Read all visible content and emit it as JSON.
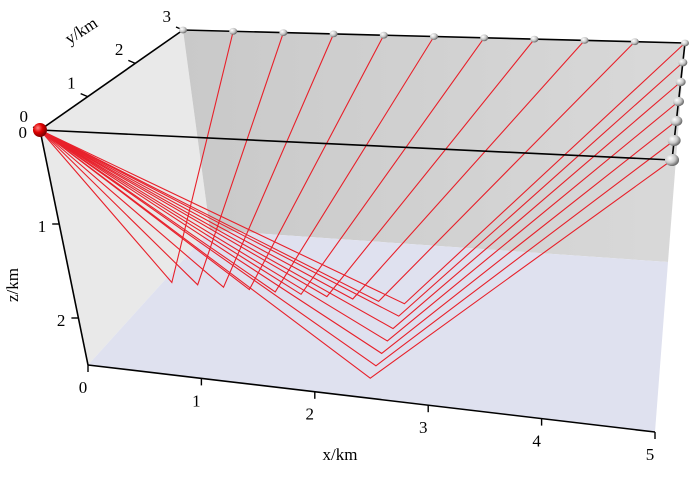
{
  "axes": {
    "x": {
      "label": "x/km",
      "ticks": [
        0,
        1,
        2,
        3,
        4,
        5
      ]
    },
    "y": {
      "label": "y/km",
      "ticks": [
        0,
        1,
        2,
        3
      ]
    },
    "z": {
      "label": "z/km",
      "ticks": [
        0,
        1,
        2
      ]
    }
  }
}
